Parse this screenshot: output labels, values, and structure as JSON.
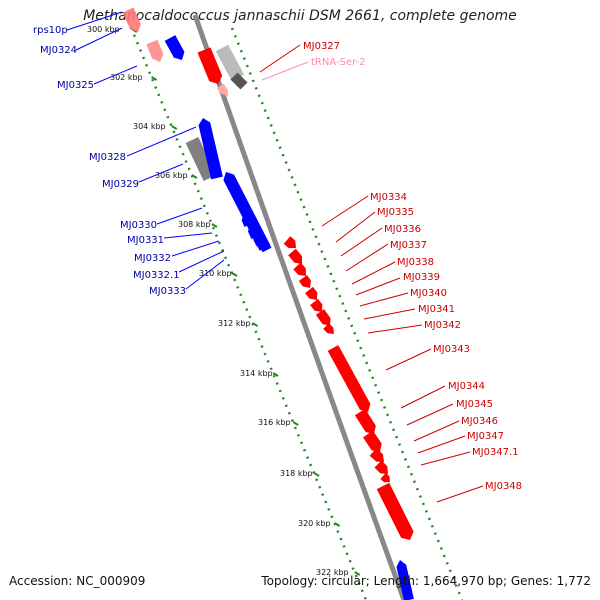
{
  "title": "Methanocaldococcus jannaschii DSM 2661, complete genome",
  "footer": {
    "accession": "Accession: NC_000909",
    "summary": "Topology: circular; Length: 1,664,970 bp; Genes: 1,772"
  },
  "colors": {
    "forward": "#ff0000",
    "reverse": "#0000ff",
    "forward_label": "#cc0000",
    "reverse_label": "#0000aa",
    "rna": "#808080",
    "trna_label": "#ff88bb",
    "tick": "#228822",
    "backbone": "#888888"
  },
  "kbp_labels": [
    "300 kbp",
    "302 kbp",
    "304 kbp",
    "306 kbp",
    "308 kbp",
    "310 kbp",
    "312 kbp",
    "314 kbp",
    "316 kbp",
    "318 kbp",
    "320 kbp",
    "322 kbp"
  ],
  "left_labels": [
    "rps10p",
    "MJ0324",
    "MJ0325",
    "MJ0328",
    "MJ0329",
    "MJ0330",
    "MJ0331",
    "MJ0332",
    "MJ0332.1",
    "MJ0333"
  ],
  "right_labels": [
    "MJ0327",
    "tRNA-Ser-2",
    "MJ0334",
    "MJ0335",
    "MJ0336",
    "MJ0337",
    "MJ0338",
    "MJ0339",
    "MJ0340",
    "MJ0341",
    "MJ0342",
    "MJ0343",
    "MJ0344",
    "MJ0345",
    "MJ0346",
    "MJ0347",
    "MJ0347.1",
    "MJ0348"
  ]
}
